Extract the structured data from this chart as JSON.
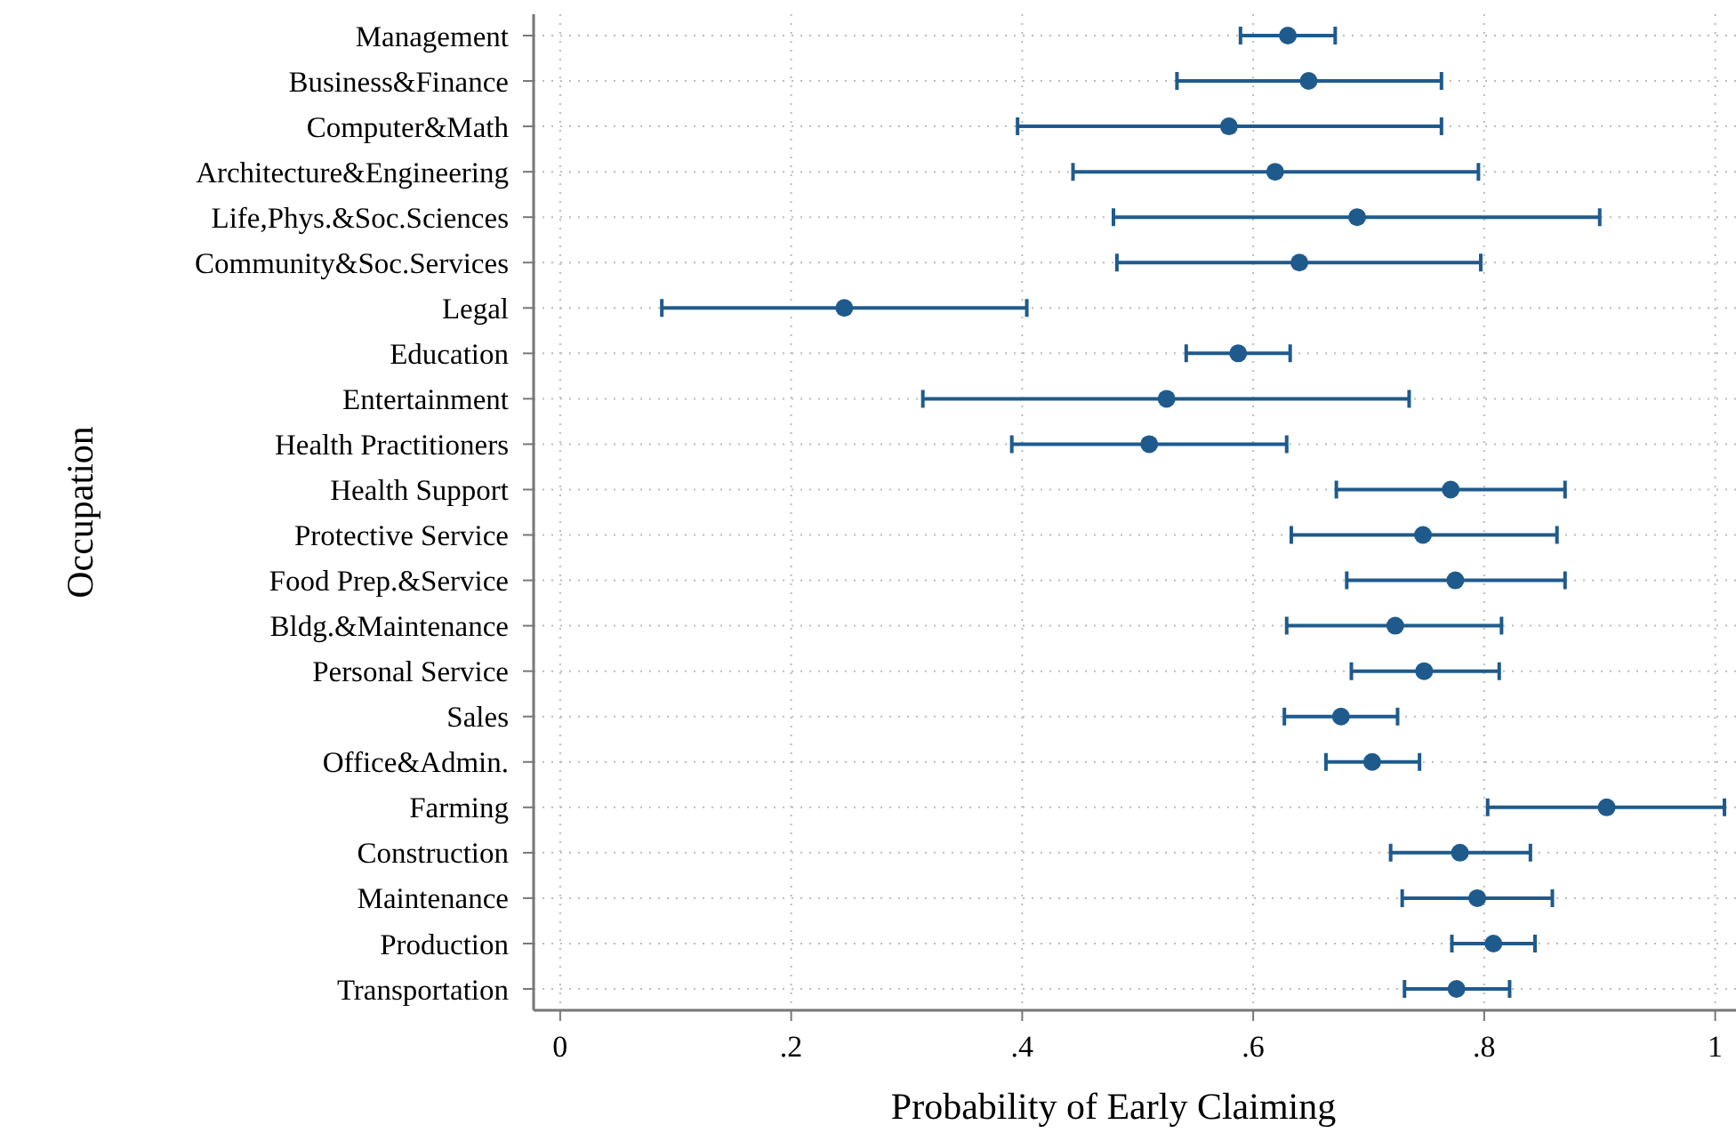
{
  "chart_data": {
    "type": "scatter",
    "orientation": "horizontal",
    "xlabel": "Probability of Early Claiming",
    "ylabel": "Occupation",
    "categories": [
      "Management",
      "Business&Finance",
      "Computer&Math",
      "Architecture&Engineering",
      "Life,Phys.&Soc.Sciences",
      "Community&Soc.Services",
      "Legal",
      "Education",
      "Entertainment",
      "Health Practitioners",
      "Health Support",
      "Protective Service",
      "Food Prep.&Service",
      "Bldg.&Maintenance",
      "Personal Service",
      "Sales",
      "Office&Admin.",
      "Farming",
      "Construction",
      "Maintenance",
      "Production",
      "Transportation"
    ],
    "series": [
      {
        "color": "#1f5a8c",
        "values": [
          0.63,
          0.648,
          0.579,
          0.619,
          0.69,
          0.64,
          0.246,
          0.587,
          0.525,
          0.51,
          0.771,
          0.747,
          0.775,
          0.723,
          0.748,
          0.676,
          0.703,
          0.906,
          0.779,
          0.794,
          0.808,
          0.776
        ],
        "errors": [
          [
            0.589,
            0.671
          ],
          [
            0.534,
            0.763
          ],
          [
            0.396,
            0.763
          ],
          [
            0.444,
            0.795
          ],
          [
            0.479,
            0.9
          ],
          [
            0.482,
            0.797
          ],
          [
            0.088,
            0.404
          ],
          [
            0.542,
            0.632
          ],
          [
            0.314,
            0.735
          ],
          [
            0.391,
            0.629
          ],
          [
            0.672,
            0.87
          ],
          [
            0.633,
            0.863
          ],
          [
            0.681,
            0.87
          ],
          [
            0.629,
            0.815
          ],
          [
            0.685,
            0.813
          ],
          [
            0.627,
            0.725
          ],
          [
            0.663,
            0.744
          ],
          [
            0.803,
            1.008
          ],
          [
            0.719,
            0.84
          ],
          [
            0.729,
            0.859
          ],
          [
            0.772,
            0.844
          ],
          [
            0.731,
            0.822
          ]
        ]
      }
    ],
    "xlim": [
      -0.023,
      1.018
    ],
    "xticks": [
      0,
      {
        "value": 0.2,
        "label": ".2"
      },
      {
        "value": 0.4,
        "label": ".4"
      },
      {
        "value": 0.6,
        "label": ".6"
      },
      {
        "value": 0.8,
        "label": ".8"
      },
      1
    ],
    "grid": true,
    "marker": "circle"
  }
}
